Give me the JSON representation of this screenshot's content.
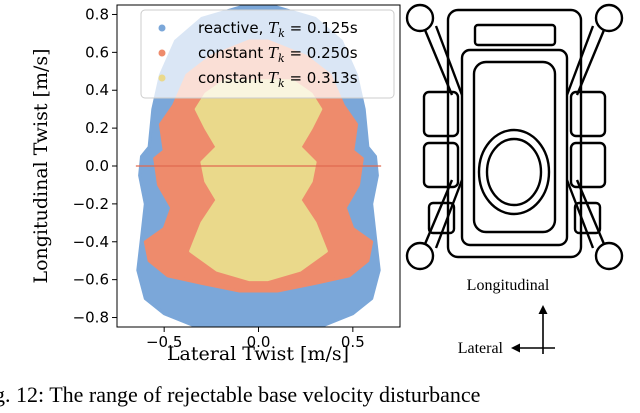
{
  "chart_data": {
    "type": "scatter",
    "xlabel": "Lateral Twist [m/s]",
    "ylabel": "Longitudinal Twist [m/s]",
    "xlim": [
      -0.75,
      0.75
    ],
    "ylim": [
      -0.85,
      0.85
    ],
    "x_ticks": [
      -0.5,
      0.0,
      0.5
    ],
    "x_tick_labels": [
      "−0.5",
      "0.0",
      "0.5"
    ],
    "y_ticks": [
      -0.8,
      -0.6,
      -0.4,
      -0.2,
      0.0,
      0.2,
      0.4,
      0.6,
      0.8
    ],
    "y_tick_labels": [
      "−0.8",
      "−0.6",
      "−0.4",
      "−0.2",
      "0.0",
      "0.2",
      "0.4",
      "0.6",
      "0.8"
    ],
    "legend_position": "top-right",
    "series": [
      {
        "name": "reactive, T_k = 0.125s",
        "legend_prefix": "reactive, ",
        "legend_var": "T",
        "legend_sub": "k",
        "legend_suffix": " = 0.125s",
        "color": "#7ba7d9",
        "outline": [
          [
            -0.06,
            0.85
          ],
          [
            -0.3,
            0.78
          ],
          [
            -0.44,
            0.66
          ],
          [
            -0.52,
            0.48
          ],
          [
            -0.56,
            0.3
          ],
          [
            -0.58,
            0.1
          ],
          [
            -0.62,
            0.05
          ],
          [
            -0.63,
            -0.05
          ],
          [
            -0.6,
            -0.2
          ],
          [
            -0.62,
            -0.38
          ],
          [
            -0.64,
            -0.55
          ],
          [
            -0.6,
            -0.7
          ],
          [
            -0.5,
            -0.78
          ],
          [
            -0.35,
            -0.84
          ],
          [
            0.35,
            -0.84
          ],
          [
            0.5,
            -0.78
          ],
          [
            0.6,
            -0.7
          ],
          [
            0.64,
            -0.55
          ],
          [
            0.62,
            -0.38
          ],
          [
            0.6,
            -0.2
          ],
          [
            0.63,
            -0.05
          ],
          [
            0.62,
            0.05
          ],
          [
            0.58,
            0.1
          ],
          [
            0.56,
            0.3
          ],
          [
            0.52,
            0.48
          ],
          [
            0.44,
            0.66
          ],
          [
            0.3,
            0.78
          ],
          [
            0.06,
            0.85
          ]
        ]
      },
      {
        "name": "constant T_k = 0.250s",
        "legend_prefix": "constant ",
        "legend_var": "T",
        "legend_sub": "k",
        "legend_suffix": " = 0.250s",
        "color": "#ee8b6c",
        "outline": [
          [
            -0.05,
            0.66
          ],
          [
            -0.25,
            0.58
          ],
          [
            -0.38,
            0.48
          ],
          [
            -0.45,
            0.32
          ],
          [
            -0.52,
            0.22
          ],
          [
            -0.5,
            0.08
          ],
          [
            -0.55,
            0.04
          ],
          [
            -0.53,
            -0.1
          ],
          [
            -0.46,
            -0.22
          ],
          [
            -0.5,
            -0.33
          ],
          [
            -0.6,
            -0.4
          ],
          [
            -0.58,
            -0.5
          ],
          [
            -0.48,
            -0.58
          ],
          [
            -0.3,
            -0.62
          ],
          [
            -0.1,
            -0.66
          ],
          [
            0.1,
            -0.66
          ],
          [
            0.3,
            -0.62
          ],
          [
            0.48,
            -0.58
          ],
          [
            0.58,
            -0.5
          ],
          [
            0.6,
            -0.4
          ],
          [
            0.5,
            -0.33
          ],
          [
            0.46,
            -0.22
          ],
          [
            0.53,
            -0.1
          ],
          [
            0.55,
            0.04
          ],
          [
            0.5,
            0.08
          ],
          [
            0.52,
            0.22
          ],
          [
            0.45,
            0.32
          ],
          [
            0.38,
            0.48
          ],
          [
            0.25,
            0.58
          ],
          [
            0.05,
            0.66
          ]
        ]
      },
      {
        "name": "constant T_k = 0.313s",
        "legend_prefix": "constant ",
        "legend_var": "T",
        "legend_sub": "k",
        "legend_suffix": " = 0.313s",
        "color": "#ead98b",
        "outline": [
          [
            -0.18,
            0.45
          ],
          [
            -0.28,
            0.38
          ],
          [
            -0.33,
            0.3
          ],
          [
            -0.28,
            0.2
          ],
          [
            -0.22,
            0.1
          ],
          [
            -0.3,
            0.02
          ],
          [
            -0.28,
            -0.08
          ],
          [
            -0.22,
            -0.18
          ],
          [
            -0.3,
            -0.3
          ],
          [
            -0.36,
            -0.45
          ],
          [
            -0.22,
            -0.55
          ],
          [
            -0.05,
            -0.6
          ],
          [
            0.05,
            -0.6
          ],
          [
            0.22,
            -0.55
          ],
          [
            0.36,
            -0.45
          ],
          [
            0.3,
            -0.3
          ],
          [
            0.22,
            -0.18
          ],
          [
            0.28,
            -0.08
          ],
          [
            0.3,
            0.02
          ],
          [
            0.22,
            0.1
          ],
          [
            0.28,
            0.2
          ],
          [
            0.33,
            0.3
          ],
          [
            0.28,
            0.38
          ],
          [
            0.18,
            0.45
          ]
        ]
      }
    ],
    "zero_line": {
      "x": [
        -0.65,
        0.65
      ],
      "y": 0.0,
      "color": "#e06a50"
    }
  },
  "robot_diagram": {
    "label_longitudinal": "Longitudinal",
    "label_lateral": "Lateral"
  },
  "caption_text": "g. 12: The range of rejectable base velocity disturbance"
}
